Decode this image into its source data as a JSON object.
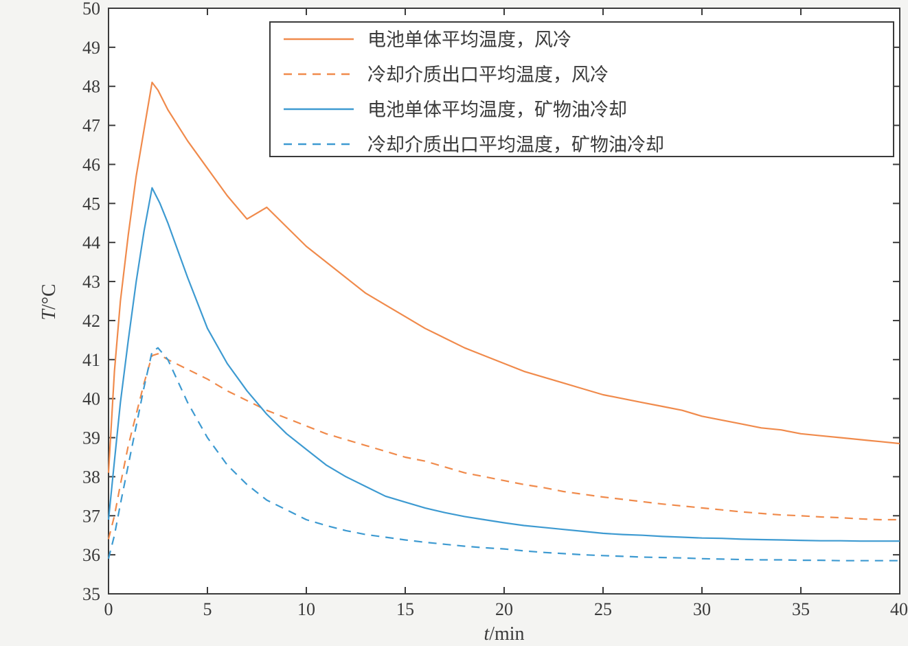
{
  "chart_data": {
    "type": "line",
    "title": "",
    "xlabel_var": "t",
    "xlabel_unit": "/min",
    "ylabel_var": "T",
    "ylabel_unit": "/°C",
    "xlim": [
      0,
      40
    ],
    "ylim": [
      35,
      50
    ],
    "xticks": [
      "0",
      "5",
      "10",
      "15",
      "20",
      "25",
      "30",
      "35",
      "40"
    ],
    "yticks": [
      "35",
      "36",
      "37",
      "38",
      "39",
      "40",
      "41",
      "42",
      "43",
      "44",
      "45",
      "46",
      "47",
      "48",
      "49",
      "50"
    ],
    "grid": false,
    "legend_position": "top-right",
    "series": [
      {
        "name": "电池单体平均温度，风冷",
        "color": "#f08a4b",
        "dash": "solid",
        "x": [
          0,
          0.3,
          0.6,
          1.0,
          1.4,
          1.8,
          2.2,
          2.5,
          3,
          4,
          5,
          6,
          7,
          8,
          9,
          10,
          11,
          12,
          13,
          14,
          15,
          16,
          17,
          18,
          19,
          20,
          21,
          22,
          23,
          24,
          25,
          26,
          27,
          28,
          29,
          30,
          31,
          32,
          33,
          34,
          35,
          36,
          37,
          38,
          39,
          40
        ],
        "y": [
          38.1,
          40.7,
          42.5,
          44.2,
          45.7,
          46.9,
          48.1,
          47.9,
          47.4,
          46.6,
          45.9,
          45.2,
          44.6,
          44.9,
          44.4,
          43.9,
          43.5,
          43.1,
          42.7,
          42.4,
          42.1,
          41.8,
          41.55,
          41.3,
          41.1,
          40.9,
          40.7,
          40.55,
          40.4,
          40.25,
          40.1,
          40.0,
          39.9,
          39.8,
          39.7,
          39.55,
          39.45,
          39.35,
          39.25,
          39.2,
          39.1,
          39.05,
          39.0,
          38.95,
          38.9,
          38.85
        ]
      },
      {
        "name": "冷却介质出口平均温度，风冷",
        "color": "#f08a4b",
        "dash": "dashed",
        "x": [
          0,
          0.3,
          0.6,
          1.0,
          1.4,
          1.8,
          2.2,
          2.5,
          3,
          4,
          5,
          6,
          7,
          8,
          9,
          10,
          11,
          12,
          13,
          14,
          15,
          16,
          17,
          18,
          19,
          20,
          21,
          22,
          23,
          24,
          25,
          26,
          27,
          28,
          29,
          30,
          31,
          32,
          33,
          34,
          35,
          36,
          37,
          38,
          39,
          40
        ],
        "y": [
          36.4,
          37.0,
          37.8,
          38.8,
          39.6,
          40.4,
          41.1,
          41.15,
          41.0,
          40.75,
          40.5,
          40.2,
          39.95,
          39.7,
          39.5,
          39.3,
          39.1,
          38.95,
          38.8,
          38.65,
          38.5,
          38.4,
          38.25,
          38.1,
          38.0,
          37.9,
          37.8,
          37.72,
          37.62,
          37.55,
          37.48,
          37.42,
          37.36,
          37.3,
          37.25,
          37.2,
          37.15,
          37.1,
          37.06,
          37.02,
          37.0,
          36.97,
          36.95,
          36.92,
          36.9,
          36.9
        ]
      },
      {
        "name": "电池单体平均温度，矿物油冷却",
        "color": "#3d9ad1",
        "dash": "solid",
        "x": [
          0,
          0.3,
          0.6,
          1.0,
          1.4,
          1.8,
          2.2,
          2.6,
          3,
          4,
          5,
          6,
          7,
          8,
          9,
          10,
          11,
          12,
          13,
          14,
          15,
          16,
          17,
          18,
          19,
          20,
          21,
          22,
          23,
          24,
          25,
          26,
          27,
          28,
          29,
          30,
          31,
          32,
          33,
          34,
          35,
          36,
          37,
          38,
          39,
          40
        ],
        "y": [
          36.9,
          38.4,
          39.9,
          41.5,
          43.0,
          44.3,
          45.4,
          45.0,
          44.5,
          43.1,
          41.8,
          40.9,
          40.2,
          39.6,
          39.1,
          38.7,
          38.3,
          38.0,
          37.75,
          37.5,
          37.35,
          37.2,
          37.08,
          36.98,
          36.9,
          36.82,
          36.75,
          36.7,
          36.65,
          36.6,
          36.55,
          36.52,
          36.5,
          36.47,
          36.45,
          36.43,
          36.42,
          36.4,
          36.39,
          36.38,
          36.37,
          36.36,
          36.36,
          36.35,
          36.35,
          36.35
        ]
      },
      {
        "name": "冷却介质出口平均温度，矿物油冷却",
        "color": "#3d9ad1",
        "dash": "dashed",
        "x": [
          0,
          0.3,
          0.6,
          1.0,
          1.4,
          1.8,
          2.2,
          2.5,
          3,
          4,
          5,
          6,
          7,
          8,
          9,
          10,
          11,
          12,
          13,
          14,
          15,
          16,
          17,
          18,
          19,
          20,
          21,
          22,
          23,
          24,
          25,
          26,
          27,
          28,
          29,
          30,
          31,
          32,
          33,
          34,
          35,
          36,
          37,
          38,
          39,
          40
        ],
        "y": [
          35.9,
          36.5,
          37.3,
          38.3,
          39.3,
          40.3,
          41.2,
          41.3,
          41.0,
          39.9,
          39.0,
          38.3,
          37.8,
          37.4,
          37.15,
          36.9,
          36.75,
          36.62,
          36.52,
          36.45,
          36.38,
          36.32,
          36.27,
          36.22,
          36.18,
          36.15,
          36.1,
          36.06,
          36.03,
          36.0,
          35.98,
          35.96,
          35.94,
          35.93,
          35.92,
          35.9,
          35.89,
          35.88,
          35.87,
          35.87,
          35.86,
          35.86,
          35.85,
          35.85,
          35.85,
          35.85
        ]
      }
    ]
  }
}
